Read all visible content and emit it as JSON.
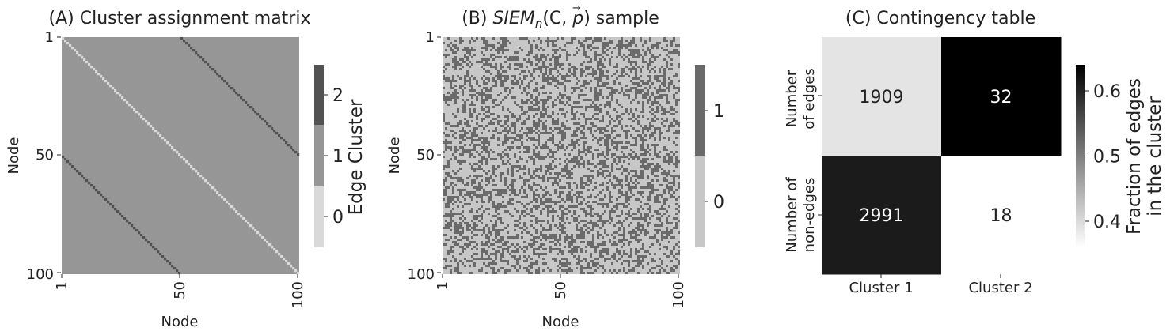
{
  "chart_data": [
    {
      "type": "heatmap",
      "title": "(A) Cluster assignment matrix",
      "xlabel": "Node",
      "ylabel": "Node",
      "n_nodes": 100,
      "x_ticks": [
        "1",
        "50",
        "100"
      ],
      "y_ticks": [
        "1",
        "50",
        "100"
      ],
      "colorbar": {
        "label": "Edge Cluster",
        "ticks": [
          "0",
          "1",
          "2"
        ],
        "levels": [
          0,
          1,
          2
        ],
        "colors": [
          "#d9d9d9",
          "#969696",
          "#525252"
        ]
      },
      "structure": {
        "diagonal_value": 0,
        "background_value": 1,
        "offdiagonal_value": 2,
        "offdiagonal_offset": 50
      }
    },
    {
      "type": "heatmap",
      "title": "(B) SIEM_n(C, p) sample",
      "title_parts": {
        "prefix": "(B) ",
        "sub": "n",
        "args": "(C, ",
        "vec": "p",
        "suffix": ") sample",
        "siem": "SIEM",
        "arrow": "→"
      },
      "xlabel": "Node",
      "ylabel": "Node",
      "n_nodes": 100,
      "x_ticks": [
        "1",
        "50",
        "100"
      ],
      "y_ticks": [
        "1",
        "50",
        "100"
      ],
      "colorbar": {
        "ticks": [
          "0",
          "1"
        ],
        "levels": [
          0,
          1
        ],
        "colors": [
          "#c7c7c7",
          "#6a6a6a"
        ]
      },
      "edge_probability": 0.39
    },
    {
      "type": "heatmap",
      "title": "(C) Contingency table",
      "columns": [
        "Cluster 1",
        "Cluster 2"
      ],
      "rows": [
        {
          "label_lines": [
            "Number",
            "of edges"
          ]
        },
        {
          "label_lines": [
            "Number of",
            "non-edges"
          ]
        }
      ],
      "values": [
        [
          1909,
          32
        ],
        [
          2991,
          18
        ]
      ],
      "fractions": [
        [
          0.3896,
          0.64
        ],
        [
          0.6104,
          0.36
        ]
      ],
      "value_labels": [
        [
          "1909",
          "32"
        ],
        [
          "2991",
          "18"
        ]
      ],
      "colorbar": {
        "label_lines": [
          "Fraction of edges",
          "in the cluster"
        ],
        "ticks": [
          "0.4",
          "0.5",
          "0.6"
        ],
        "tick_values": [
          0.4,
          0.5,
          0.6
        ],
        "range": [
          0.36,
          0.64
        ]
      }
    }
  ]
}
